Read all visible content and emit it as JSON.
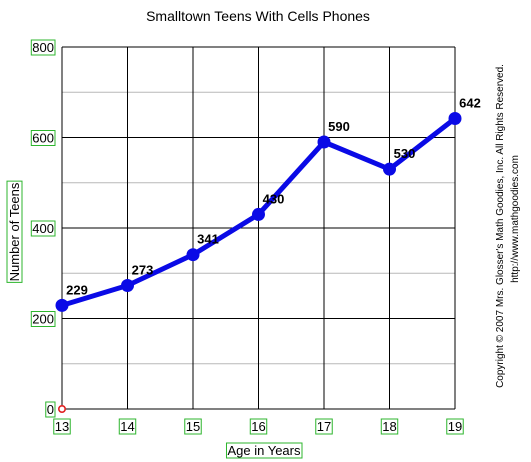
{
  "chart_data": {
    "type": "line",
    "title": "Smalltown Teens With Cells Phones",
    "xlabel": "Age in Years",
    "ylabel": "Number of Teens",
    "x": [
      13,
      14,
      15,
      16,
      17,
      18,
      19
    ],
    "x_tick_labels": [
      "13",
      "14",
      "15",
      "16",
      "17",
      "18",
      "19"
    ],
    "series": [
      {
        "values": [
          229,
          273,
          341,
          430,
          590,
          530,
          642
        ],
        "data_labels": [
          "229",
          "273",
          "341",
          "430",
          "590",
          "530",
          "642"
        ]
      }
    ],
    "y_tick_labels": [
      "0",
      "200",
      "400",
      "600",
      "800"
    ],
    "y_ticks": [
      0,
      200,
      400,
      600,
      800
    ],
    "xlim": [
      13,
      19
    ],
    "ylim": [
      0,
      800
    ],
    "grid": true,
    "minor_grid_step": 100,
    "colors": {
      "line": "#0a0ae6",
      "marker": "#0a0ae6",
      "tick_label_box": "#2db52d",
      "origin_marker": "#e02020",
      "major_grid": "#000000",
      "minor_grid": "#b8b8b8"
    }
  },
  "credits": {
    "line1": "Copyright © 2007 Mrs. Glosser's Math Goodies, Inc. All Rights Reserved.",
    "line2": "http://www.mathgoodies.com"
  }
}
